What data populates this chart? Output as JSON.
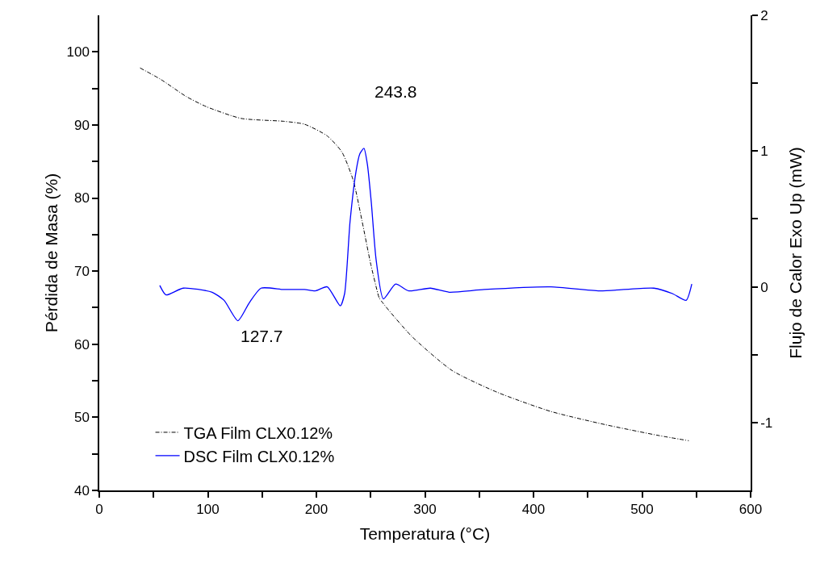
{
  "chart_data": {
    "type": "line",
    "xlabel": "Temperatura (°C)",
    "ylabel": "Pérdida de Masa (%)",
    "y2label": "Flujo de Calor Exo Up (mW)",
    "xlim": [
      0,
      600
    ],
    "xticks": [
      0,
      {
        "value": 50,
        "label": null
      },
      100,
      {
        "value": 150,
        "label": null
      },
      200,
      {
        "value": 250,
        "label": null
      },
      300,
      {
        "value": 350,
        "label": null
      },
      400,
      {
        "value": 450,
        "label": null
      },
      500,
      {
        "value": 550,
        "label": null
      },
      600
    ],
    "ylim": [
      40,
      105
    ],
    "yticks": [
      40,
      {
        "value": 45,
        "label": null
      },
      50,
      {
        "value": 55,
        "label": null
      },
      60,
      {
        "value": 65,
        "label": null
      },
      70,
      {
        "value": 75,
        "label": null
      },
      80,
      {
        "value": 85,
        "label": null
      },
      90,
      {
        "value": 95,
        "label": null
      },
      100
    ],
    "y2lim": [
      -1.5,
      2
    ],
    "y2ticks": [
      -1,
      {
        "value": -0.5,
        "label": null
      },
      0,
      {
        "value": 0.5,
        "label": null
      },
      1,
      {
        "value": 1.5,
        "label": null
      },
      2
    ],
    "grid": false,
    "legend": "bottom left",
    "marker": "none",
    "annotations": [
      "243.8",
      "127.7"
    ],
    "series": [
      {
        "name": "TGA Film CLX0.12%",
        "color": "#000000",
        "line_style": "dashed",
        "x": [
          37.6,
          57,
          80,
          98.7,
          130.5,
          170,
          189,
          210,
          223.5,
          234,
          242,
          250,
          256.5,
          258,
          287.7,
          325,
          367,
          416,
          466,
          515.7,
          543
        ],
        "values": [
          97.8,
          96.2,
          93.9,
          92.5,
          90.9,
          90.5,
          90.1,
          88.5,
          86.3,
          82.4,
          76.9,
          71,
          67,
          66.3,
          61.1,
          56.4,
          53.4,
          50.8,
          49.0,
          47.5,
          46.8
        ]
      },
      {
        "name": "DSC Film CLX0.12%",
        "color": "#0000ff",
        "line_style": "solid",
        "axis": "y2",
        "x": [
          55.7,
          61.5,
          77.3,
          104,
          115,
          127.7,
          138,
          149,
          170,
          189,
          199,
          210,
          222,
          226,
          231,
          236.5,
          240,
          243.8,
          247,
          250.6,
          255,
          261.7,
          273,
          285,
          305,
          322.4,
          354.6,
          416,
          461,
          510.8,
          528,
          540.6,
          545.8
        ],
        "values": [
          0.01,
          -0.06,
          -0.01,
          -0.04,
          -0.1,
          -0.25,
          -0.12,
          -0.01,
          -0.02,
          -0.02,
          -0.03,
          0.0,
          -0.14,
          -0.05,
          0.48,
          0.85,
          0.98,
          1.02,
          0.9,
          0.62,
          0.2,
          -0.09,
          0.02,
          -0.03,
          -0.01,
          -0.04,
          -0.02,
          0.0,
          -0.03,
          -0.01,
          -0.05,
          -0.1,
          0.02
        ]
      }
    ]
  }
}
